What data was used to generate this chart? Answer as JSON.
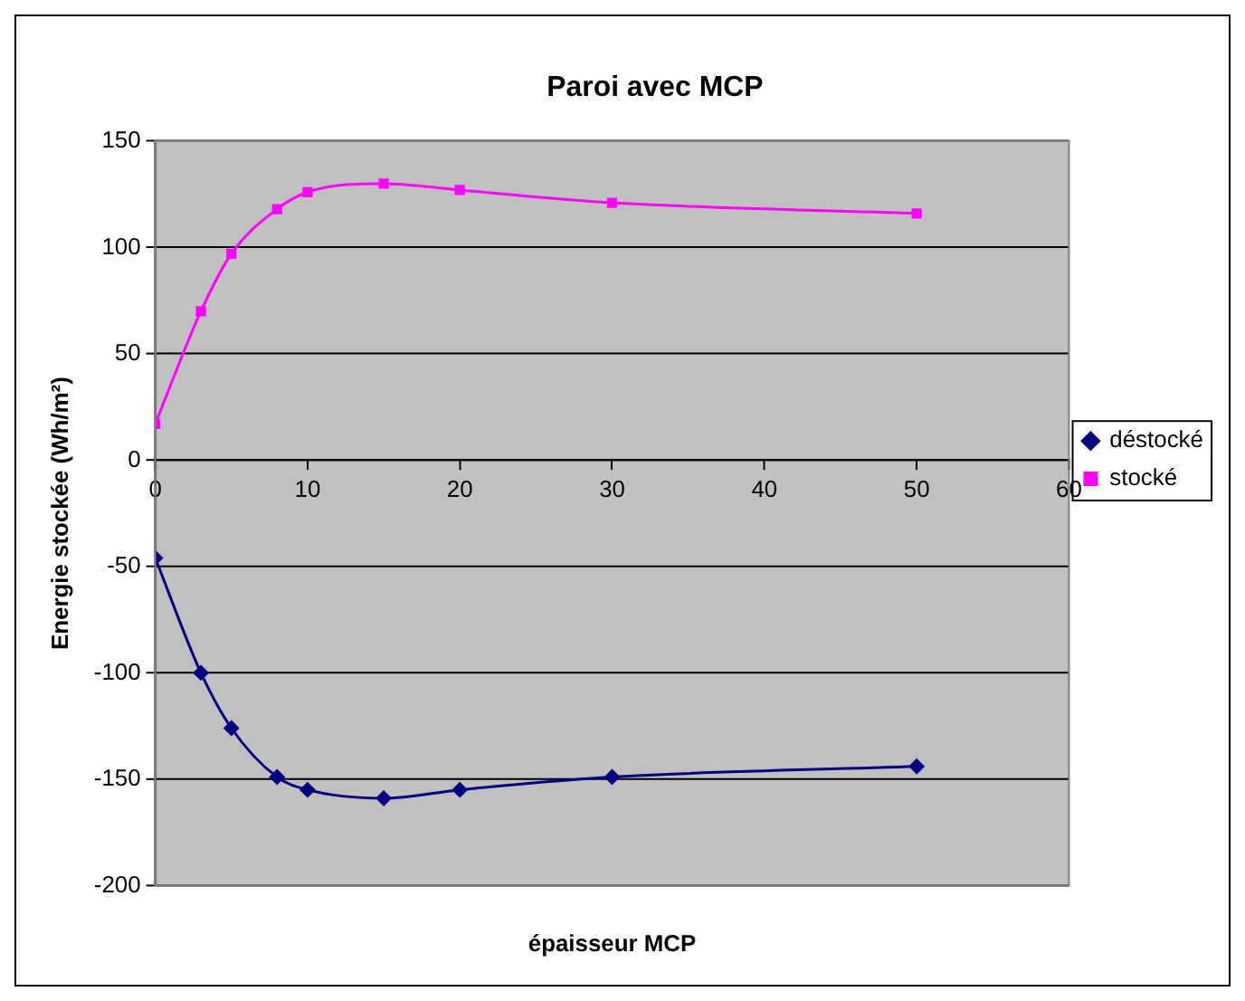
{
  "chart_data": {
    "type": "line",
    "title": "Paroi avec MCP",
    "xlabel": "épaisseur MCP",
    "ylabel": "Energie stockée (Wh/m²)",
    "x": [
      0,
      3,
      5,
      8,
      10,
      15,
      20,
      30,
      50
    ],
    "series": [
      {
        "name": "déstocké",
        "color": "#000080",
        "marker": "diamond",
        "values": [
          -46,
          -100,
          -126,
          -149,
          -155,
          -159,
          -155,
          -149,
          -144
        ]
      },
      {
        "name": "stocké",
        "color": "#ff00ff",
        "marker": "square",
        "values": [
          17,
          70,
          97,
          118,
          126,
          130,
          127,
          121,
          116
        ]
      }
    ],
    "xlim": [
      0,
      60
    ],
    "xticks": [
      0,
      10,
      20,
      30,
      40,
      50,
      60
    ],
    "ylim": [
      -200,
      150
    ],
    "yticks": [
      -200,
      -150,
      -100,
      -50,
      0,
      50,
      100,
      150
    ],
    "grid": "y",
    "legend": "right"
  }
}
